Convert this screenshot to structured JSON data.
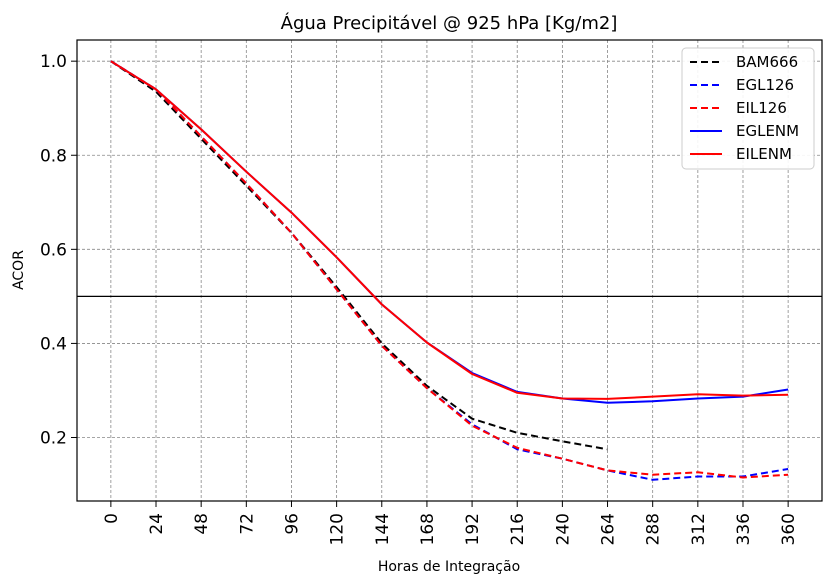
{
  "chart_data": {
    "type": "line",
    "title": "Água Precipitável @ 925 hPa [Kg/m2]",
    "xlabel": "Horas de Integração",
    "ylabel": "ACOR",
    "xlim": [
      -18,
      378
    ],
    "ylim": [
      0.065,
      1.045
    ],
    "x_ticks": [
      0,
      24,
      48,
      72,
      96,
      120,
      144,
      168,
      192,
      216,
      240,
      264,
      288,
      312,
      336,
      360
    ],
    "x_tick_labels": [
      "0",
      "24",
      "48",
      "72",
      "96",
      "120",
      "144",
      "168",
      "192",
      "216",
      "240",
      "264",
      "288",
      "312",
      "336",
      "360"
    ],
    "y_ticks": [
      0.2,
      0.4,
      0.6,
      0.8,
      1.0
    ],
    "y_tick_labels": [
      "0.2",
      "0.4",
      "0.6",
      "0.8",
      "1.0"
    ],
    "reference_line": 0.5,
    "grid": true,
    "legend_position": "top-right",
    "series": [
      {
        "name": "BAM666",
        "color": "#000000",
        "dash": true,
        "x": [
          0,
          24,
          48,
          72,
          96,
          120,
          144,
          168,
          192,
          216,
          240,
          264
        ],
        "values": [
          1.0,
          0.935,
          0.835,
          0.735,
          0.635,
          0.52,
          0.4,
          0.31,
          0.24,
          0.21,
          0.192,
          0.175
        ]
      },
      {
        "name": "EGL126",
        "color": "#0000ff",
        "dash": true,
        "x": [
          0,
          24,
          48,
          72,
          96,
          120,
          144,
          168,
          192,
          216,
          240,
          264,
          288,
          312,
          336,
          360
        ],
        "values": [
          1.0,
          0.94,
          0.84,
          0.74,
          0.635,
          0.515,
          0.395,
          0.305,
          0.228,
          0.175,
          0.155,
          0.13,
          0.11,
          0.117,
          0.117,
          0.133
        ]
      },
      {
        "name": "EIL126",
        "color": "#ff0000",
        "dash": true,
        "x": [
          0,
          24,
          48,
          72,
          96,
          120,
          144,
          168,
          192,
          216,
          240,
          264,
          288,
          312,
          336,
          360
        ],
        "values": [
          1.0,
          0.94,
          0.84,
          0.74,
          0.635,
          0.515,
          0.395,
          0.305,
          0.225,
          0.178,
          0.155,
          0.13,
          0.121,
          0.126,
          0.115,
          0.121
        ]
      },
      {
        "name": "EGLENM",
        "color": "#0000ff",
        "dash": false,
        "x": [
          0,
          24,
          48,
          72,
          96,
          120,
          144,
          168,
          192,
          216,
          240,
          264,
          288,
          312,
          336,
          360
        ],
        "values": [
          1.0,
          0.94,
          0.855,
          0.765,
          0.678,
          0.583,
          0.483,
          0.402,
          0.337,
          0.297,
          0.283,
          0.274,
          0.277,
          0.283,
          0.287,
          0.302
        ]
      },
      {
        "name": "EILENM",
        "color": "#ff0000",
        "dash": false,
        "x": [
          0,
          24,
          48,
          72,
          96,
          120,
          144,
          168,
          192,
          216,
          240,
          264,
          288,
          312,
          336,
          360
        ],
        "values": [
          1.0,
          0.94,
          0.855,
          0.765,
          0.678,
          0.583,
          0.483,
          0.402,
          0.335,
          0.295,
          0.283,
          0.282,
          0.287,
          0.292,
          0.289,
          0.291
        ]
      }
    ]
  }
}
